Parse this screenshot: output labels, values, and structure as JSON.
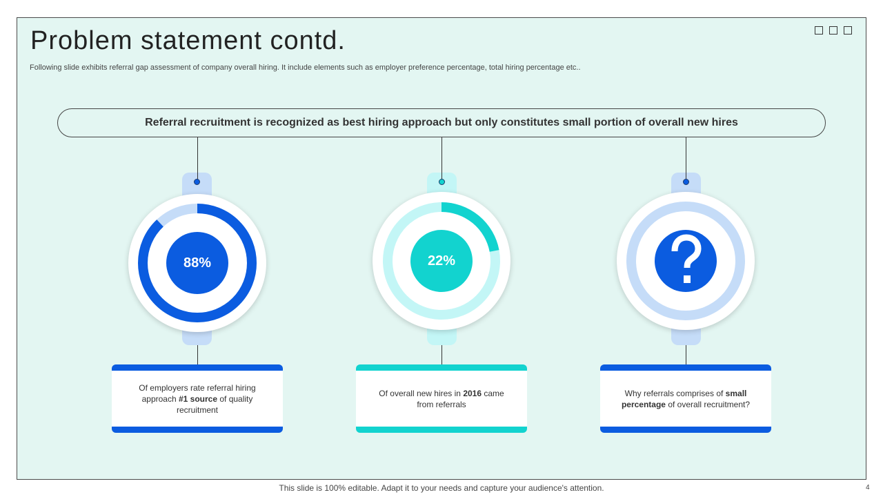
{
  "slide": {
    "title": "Problem statement contd.",
    "subtitle": "Following slide exhibits referral gap assessment of company overall hiring. It include elements such as employer preference percentage, total hiring percentage etc..",
    "headline": "Referral recruitment is recognized as best hiring approach but only constitutes small portion of overall new hires"
  },
  "colors": {
    "blue": "#0b5ce0",
    "blue_light": "#c5dcf8",
    "teal": "#12d3cf",
    "teal_light": "#c3f6f6"
  },
  "stats": [
    {
      "value": "88%",
      "percent": 88,
      "text_pre": "Of employers rate referral hiring approach ",
      "text_bold": "#1 source",
      "text_post": " of quality recruitment"
    },
    {
      "value": "22%",
      "percent": 22,
      "text_pre": "Of overall new hires in ",
      "text_bold": "2016",
      "text_post": " came from referrals"
    },
    {
      "icon": "question-mark-icon",
      "text_pre": "Why referrals comprises of ",
      "text_bold": "small percentage",
      "text_post": " of overall recruitment?"
    }
  ],
  "footer": {
    "note": "This slide is 100% editable. Adapt it to your needs and capture your audience's attention.",
    "page": "4"
  }
}
